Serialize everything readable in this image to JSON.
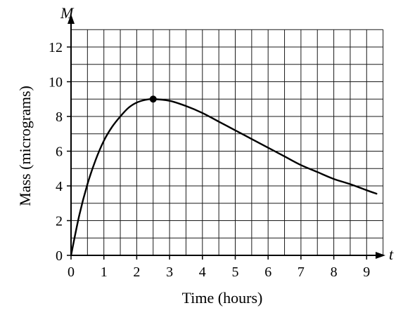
{
  "chart_data": {
    "type": "line",
    "xlabel": "Time (hours)",
    "ylabel": "Mass (micrograms)",
    "x_variable": "t",
    "y_variable": "M",
    "xlim": [
      0,
      9
    ],
    "ylim": [
      0,
      12
    ],
    "x_ticks": [
      0,
      1,
      2,
      3,
      4,
      5,
      6,
      7,
      8,
      9
    ],
    "y_ticks": [
      0,
      2,
      4,
      6,
      8,
      10,
      12
    ],
    "grid": true,
    "grid_step_x": 0.5,
    "grid_step_y": 1,
    "series": [
      {
        "x": [
          0,
          0.25,
          0.5,
          0.75,
          1,
          1.25,
          1.5,
          1.75,
          2,
          2.25,
          2.5,
          3,
          3.5,
          4,
          4.5,
          5,
          5.5,
          6,
          6.5,
          7,
          7.5,
          8,
          8.5,
          9,
          9.3
        ],
        "y": [
          0,
          2.3,
          4.1,
          5.5,
          6.6,
          7.4,
          8.0,
          8.5,
          8.8,
          8.95,
          9.0,
          8.9,
          8.6,
          8.2,
          7.7,
          7.2,
          6.7,
          6.2,
          5.7,
          5.2,
          4.8,
          4.4,
          4.1,
          3.75,
          3.55
        ]
      }
    ],
    "highlight_point": {
      "x": 2.5,
      "y": 9
    },
    "tick_labels_x": [
      "0",
      "1",
      "2",
      "3",
      "4",
      "5",
      "6",
      "7",
      "8",
      "9"
    ],
    "tick_labels_y": [
      "0",
      "2",
      "4",
      "6",
      "8",
      "10",
      "12"
    ]
  }
}
